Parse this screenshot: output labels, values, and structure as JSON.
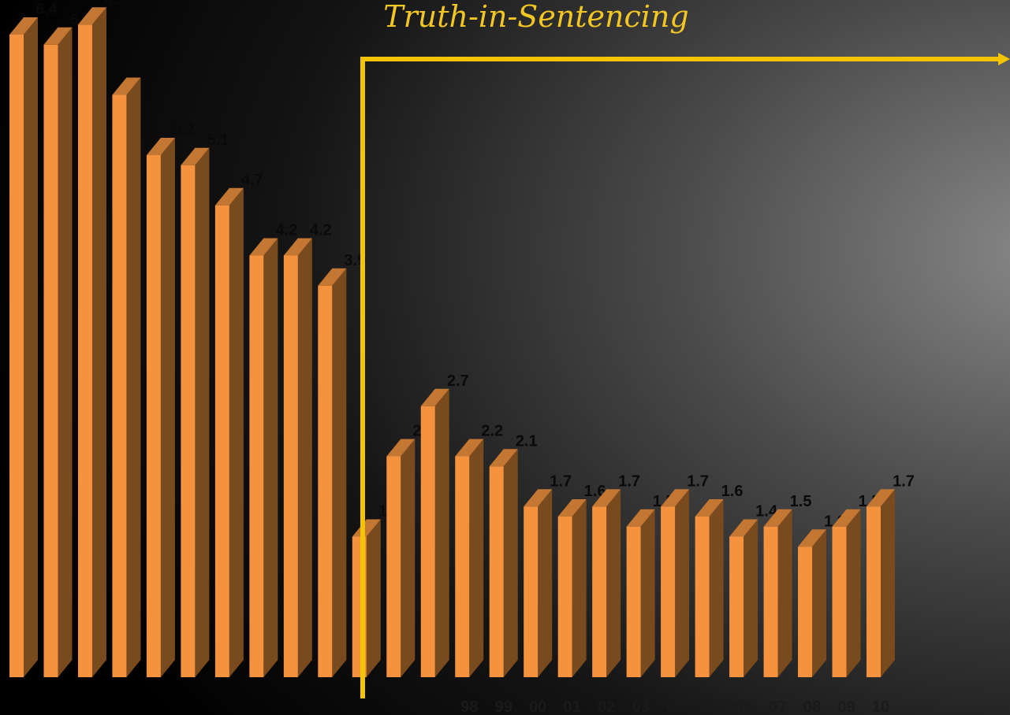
{
  "chart_data": {
    "type": "bar3d",
    "title": "Truth-in-Sentencing",
    "categories": [
      null,
      null,
      null,
      null,
      null,
      null,
      null,
      null,
      null,
      null,
      null,
      null,
      null,
      "98",
      "99",
      "00",
      "01",
      "02",
      "03",
      "04",
      "05",
      "06",
      "07",
      "08",
      "09",
      "10"
    ],
    "values": [
      6.4,
      6.3,
      6.5,
      5.8,
      5.2,
      5.1,
      4.7,
      4.2,
      4.2,
      3.9,
      1.4,
      2.2,
      2.7,
      2.2,
      2.1,
      1.7,
      1.6,
      1.7,
      1.5,
      1.7,
      1.6,
      1.4,
      1.5,
      1.3,
      1.5,
      1.7
    ],
    "color": "#f5923e"
  }
}
